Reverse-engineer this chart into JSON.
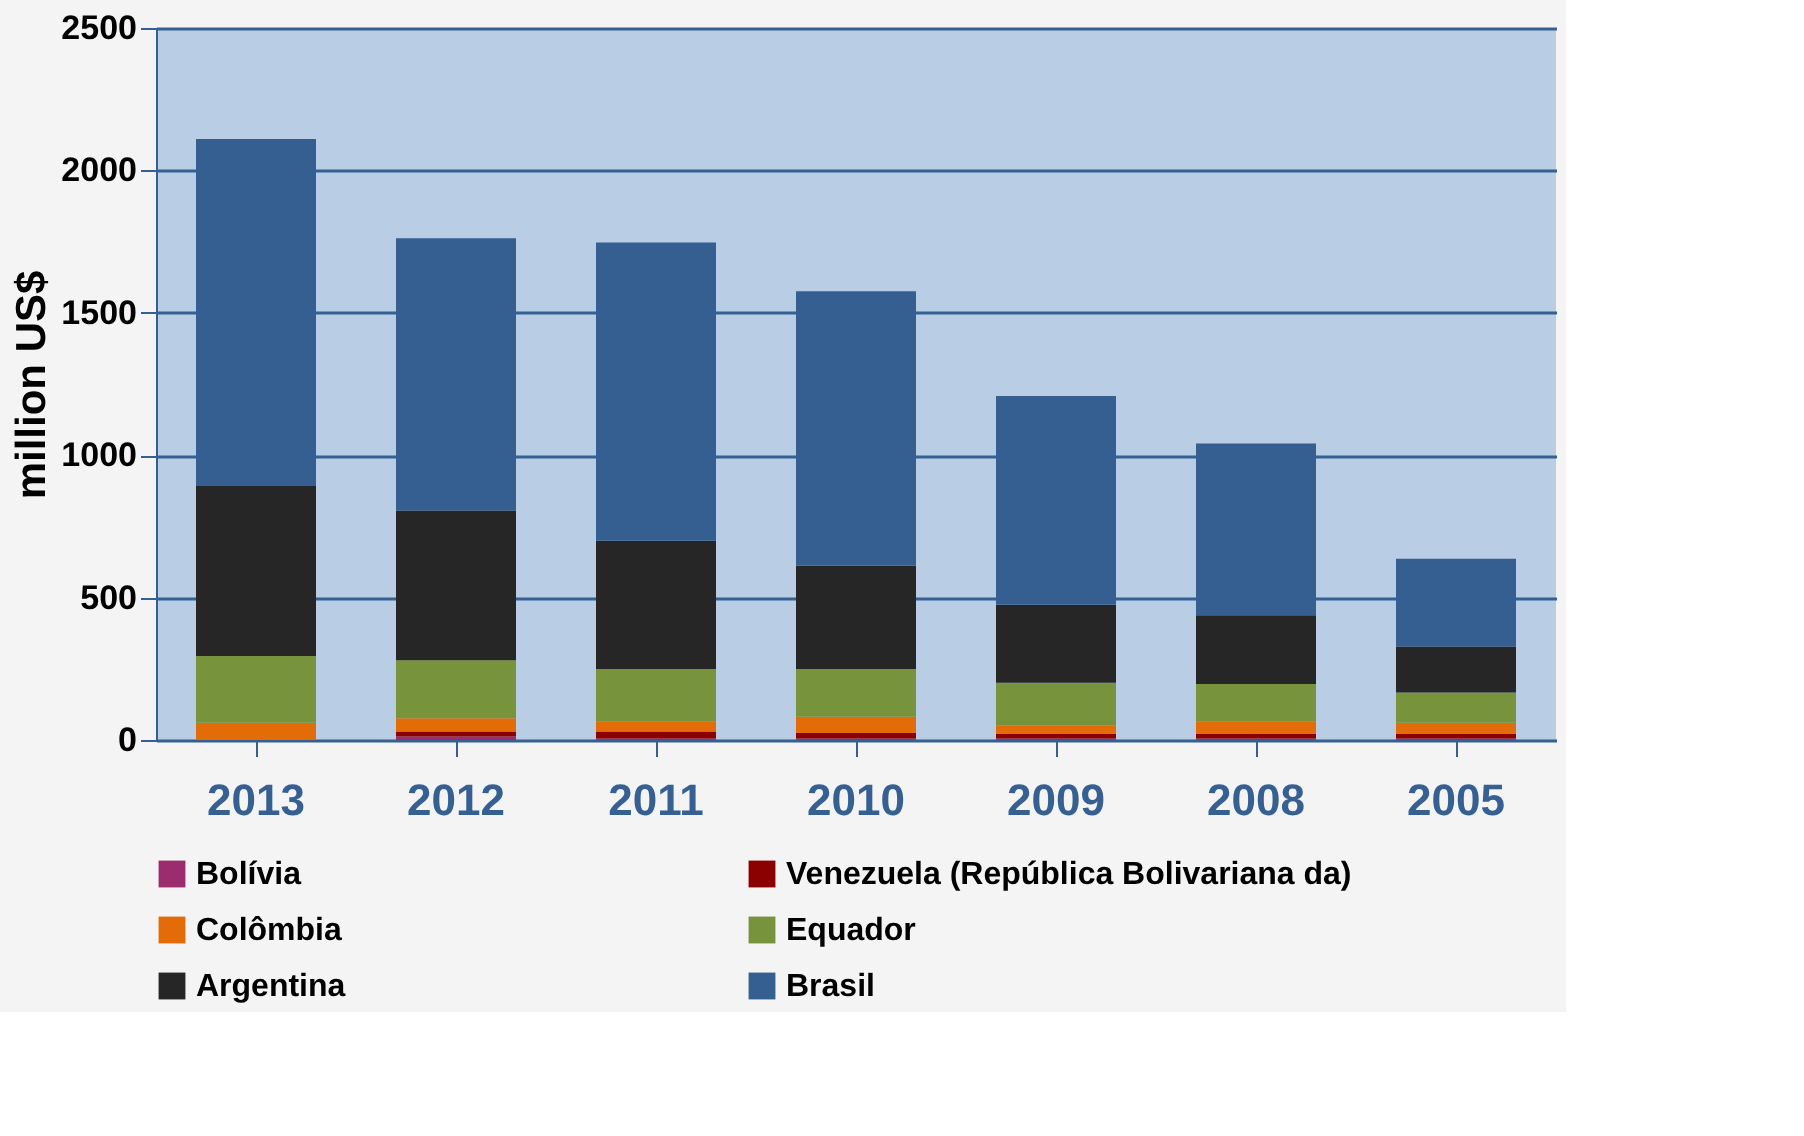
{
  "chart_data": {
    "type": "bar",
    "stacked": true,
    "ylabel": "million US$",
    "categories": [
      "2013",
      "2012",
      "2011",
      "2010",
      "2009",
      "2008",
      "2005"
    ],
    "series": [
      {
        "name": "Bolívia",
        "color": "#9b2d6f",
        "values": [
          0,
          12,
          5,
          5,
          5,
          5,
          5
        ]
      },
      {
        "name": "Venezuela (República Bolivariana da)",
        "color": "#8b0000",
        "values": [
          0,
          18,
          25,
          20,
          16,
          16,
          16
        ]
      },
      {
        "name": "Colômbia",
        "color": "#e36c09",
        "values": [
          61,
          46,
          34,
          57,
          31,
          43,
          40
        ]
      },
      {
        "name": "Equador",
        "color": "#77933c",
        "values": [
          234,
          204,
          185,
          167,
          149,
          133,
          106
        ]
      },
      {
        "name": "Argentina",
        "color": "#262626",
        "values": [
          597,
          526,
          451,
          363,
          274,
          241,
          161
        ]
      },
      {
        "name": "Brasil",
        "color": "#355f91",
        "values": [
          1218,
          956,
          1047,
          964,
          733,
          603,
          308
        ]
      }
    ],
    "ylim": [
      0,
      2500
    ],
    "yticks": [
      0,
      500,
      1000,
      1500,
      2000,
      2500
    ],
    "grid": "y",
    "legend": "bottom"
  }
}
